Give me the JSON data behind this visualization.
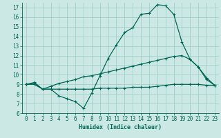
{
  "xlabel": "Humidex (Indice chaleur)",
  "bg_color": "#cce8e4",
  "grid_color": "#99ccc4",
  "line_color": "#006655",
  "xlim": [
    -0.5,
    23.5
  ],
  "ylim": [
    6,
    17.5
  ],
  "xticks": [
    0,
    1,
    2,
    3,
    4,
    5,
    6,
    7,
    8,
    9,
    10,
    11,
    12,
    13,
    14,
    15,
    16,
    17,
    18,
    19,
    20,
    21,
    22,
    23
  ],
  "yticks": [
    6,
    7,
    8,
    9,
    10,
    11,
    12,
    13,
    14,
    15,
    16,
    17
  ],
  "line1_x": [
    0,
    1,
    2,
    3,
    4,
    5,
    6,
    7,
    8,
    9,
    10,
    11,
    12,
    13,
    14,
    15,
    16,
    17,
    18,
    19,
    20,
    21,
    22,
    23
  ],
  "line1_y": [
    9.0,
    9.1,
    8.5,
    8.5,
    7.8,
    7.5,
    7.2,
    6.5,
    8.1,
    9.9,
    11.7,
    13.1,
    14.4,
    14.9,
    16.3,
    16.4,
    17.3,
    17.2,
    16.3,
    13.4,
    11.6,
    10.8,
    9.7,
    8.9
  ],
  "line2_x": [
    0,
    1,
    2,
    3,
    4,
    5,
    6,
    7,
    8,
    9,
    10,
    11,
    12,
    13,
    14,
    15,
    16,
    17,
    18,
    19,
    20,
    21,
    22,
    23
  ],
  "line2_y": [
    9.0,
    9.2,
    8.5,
    8.8,
    9.1,
    9.3,
    9.5,
    9.8,
    9.9,
    10.1,
    10.3,
    10.5,
    10.7,
    10.9,
    11.1,
    11.3,
    11.5,
    11.7,
    11.9,
    12.0,
    11.6,
    10.8,
    9.5,
    8.9
  ],
  "line3_x": [
    0,
    1,
    2,
    3,
    4,
    5,
    6,
    7,
    8,
    9,
    10,
    11,
    12,
    13,
    14,
    15,
    16,
    17,
    18,
    19,
    20,
    21,
    22,
    23
  ],
  "line3_y": [
    9.0,
    9.0,
    8.5,
    8.5,
    8.5,
    8.5,
    8.5,
    8.5,
    8.5,
    8.6,
    8.6,
    8.6,
    8.6,
    8.7,
    8.7,
    8.7,
    8.8,
    8.9,
    9.0,
    9.0,
    9.0,
    9.0,
    8.9,
    8.9
  ],
  "marker_size": 3.0,
  "linewidth": 0.9,
  "tick_fontsize": 5.5,
  "xlabel_fontsize": 6.0
}
